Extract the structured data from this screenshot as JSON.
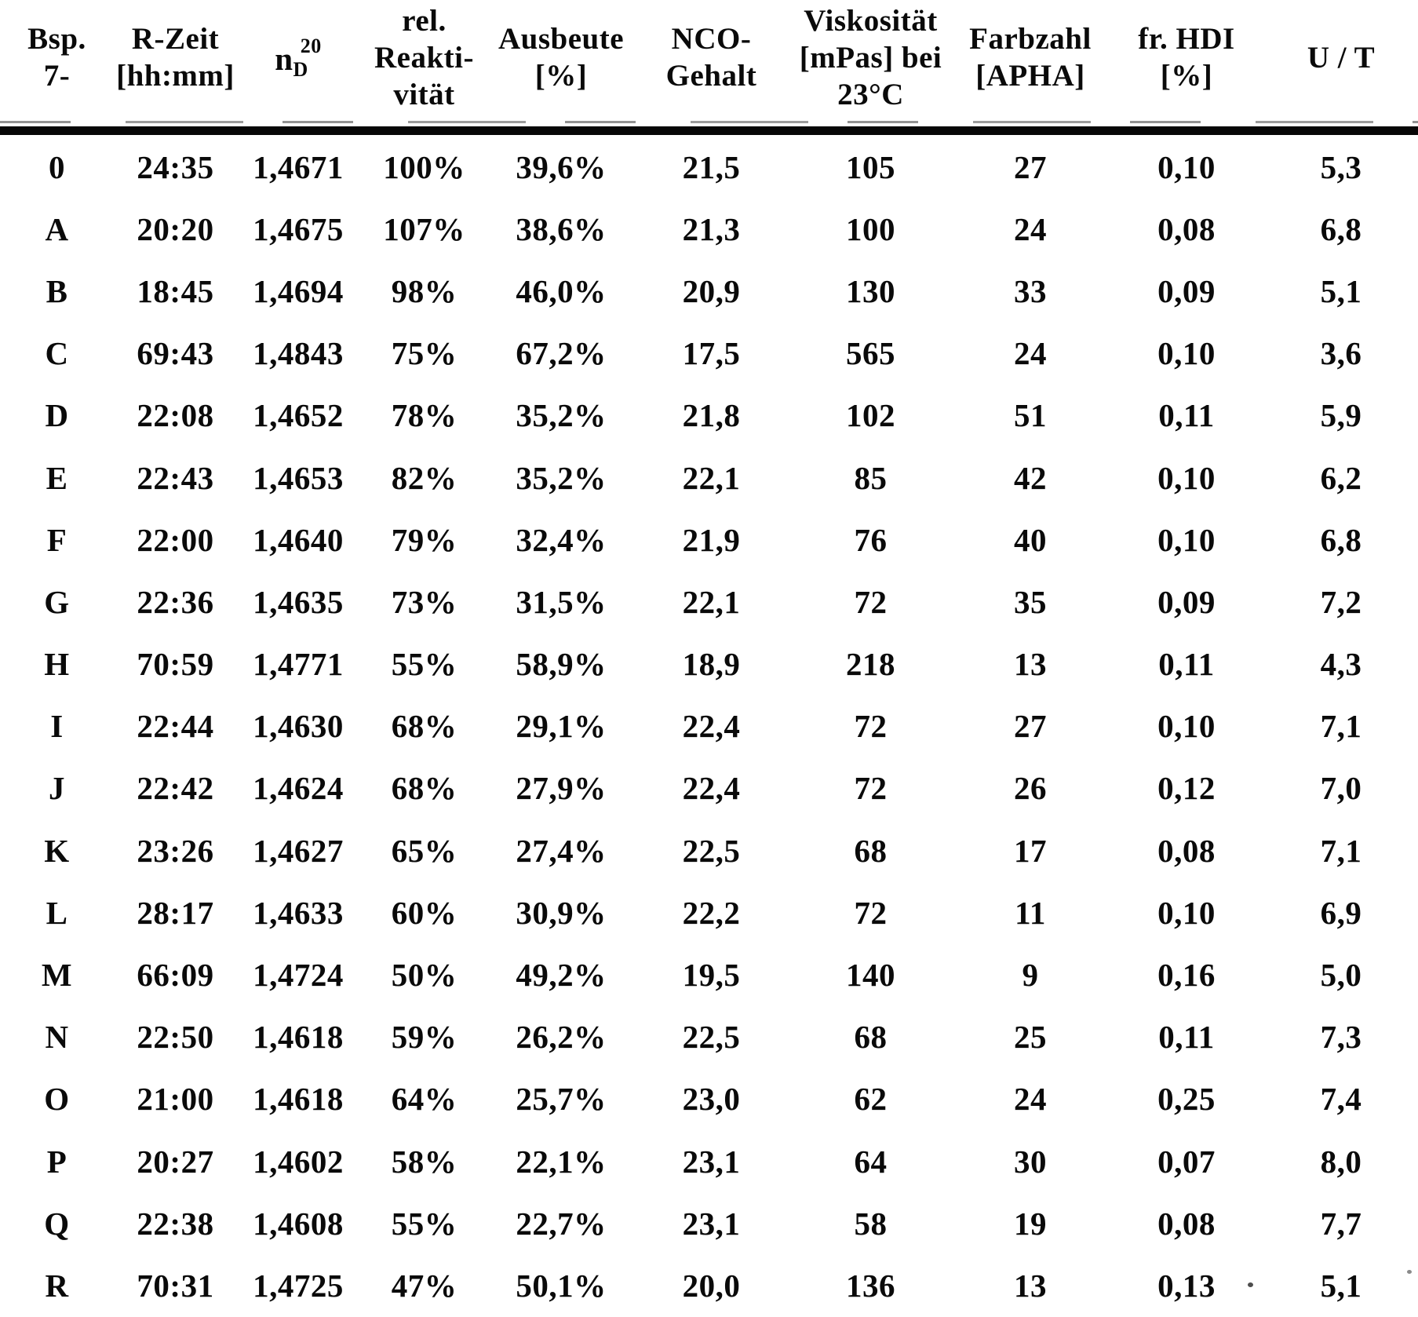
{
  "table": {
    "columns": [
      {
        "lines": [
          "Bsp.",
          "7-"
        ]
      },
      {
        "lines": [
          "R-Zeit",
          "[hh:mm]"
        ]
      },
      {
        "formula": {
          "base": "n",
          "sub": "D",
          "sup": "20"
        }
      },
      {
        "lines": [
          "rel.",
          "Reakti-",
          "vität"
        ]
      },
      {
        "lines": [
          "Ausbeute",
          "[%]"
        ]
      },
      {
        "lines": [
          "NCO-",
          "Gehalt"
        ]
      },
      {
        "lines": [
          "Viskosität",
          "[mPas] bei",
          "23°C"
        ]
      },
      {
        "lines": [
          "Farbzahl",
          "[APHA]"
        ]
      },
      {
        "lines": [
          "fr. HDI",
          "[%]"
        ]
      },
      {
        "lines": [
          "U / T"
        ]
      }
    ],
    "rows": [
      [
        "0",
        "24:35",
        "1,4671",
        "100%",
        "39,6%",
        "21,5",
        "105",
        "27",
        "0,10",
        "5,3"
      ],
      [
        "A",
        "20:20",
        "1,4675",
        "107%",
        "38,6%",
        "21,3",
        "100",
        "24",
        "0,08",
        "6,8"
      ],
      [
        "B",
        "18:45",
        "1,4694",
        "98%",
        "46,0%",
        "20,9",
        "130",
        "33",
        "0,09",
        "5,1"
      ],
      [
        "C",
        "69:43",
        "1,4843",
        "75%",
        "67,2%",
        "17,5",
        "565",
        "24",
        "0,10",
        "3,6"
      ],
      [
        "D",
        "22:08",
        "1,4652",
        "78%",
        "35,2%",
        "21,8",
        "102",
        "51",
        "0,11",
        "5,9"
      ],
      [
        "E",
        "22:43",
        "1,4653",
        "82%",
        "35,2%",
        "22,1",
        "85",
        "42",
        "0,10",
        "6,2"
      ],
      [
        "F",
        "22:00",
        "1,4640",
        "79%",
        "32,4%",
        "21,9",
        "76",
        "40",
        "0,10",
        "6,8"
      ],
      [
        "G",
        "22:36",
        "1,4635",
        "73%",
        "31,5%",
        "22,1",
        "72",
        "35",
        "0,09",
        "7,2"
      ],
      [
        "H",
        "70:59",
        "1,4771",
        "55%",
        "58,9%",
        "18,9",
        "218",
        "13",
        "0,11",
        "4,3"
      ],
      [
        "I",
        "22:44",
        "1,4630",
        "68%",
        "29,1%",
        "22,4",
        "72",
        "27",
        "0,10",
        "7,1"
      ],
      [
        "J",
        "22:42",
        "1,4624",
        "68%",
        "27,9%",
        "22,4",
        "72",
        "26",
        "0,12",
        "7,0"
      ],
      [
        "K",
        "23:26",
        "1,4627",
        "65%",
        "27,4%",
        "22,5",
        "68",
        "17",
        "0,08",
        "7,1"
      ],
      [
        "L",
        "28:17",
        "1,4633",
        "60%",
        "30,9%",
        "22,2",
        "72",
        "11",
        "0,10",
        "6,9"
      ],
      [
        "M",
        "66:09",
        "1,4724",
        "50%",
        "49,2%",
        "19,5",
        "140",
        "9",
        "0,16",
        "5,0"
      ],
      [
        "N",
        "22:50",
        "1,4618",
        "59%",
        "26,2%",
        "22,5",
        "68",
        "25",
        "0,11",
        "7,3"
      ],
      [
        "O",
        "21:00",
        "1,4618",
        "64%",
        "25,7%",
        "23,0",
        "62",
        "24",
        "0,25",
        "7,4"
      ],
      [
        "P",
        "20:27",
        "1,4602",
        "58%",
        "22,1%",
        "23,1",
        "64",
        "30",
        "0,07",
        "8,0"
      ],
      [
        "Q",
        "22:38",
        "1,4608",
        "55%",
        "22,7%",
        "23,1",
        "58",
        "19",
        "0,08",
        "7,7"
      ],
      [
        "R",
        "70:31",
        "1,4725",
        "47%",
        "50,1%",
        "20,0",
        "136",
        "13",
        "0,13",
        "5,1"
      ]
    ]
  }
}
